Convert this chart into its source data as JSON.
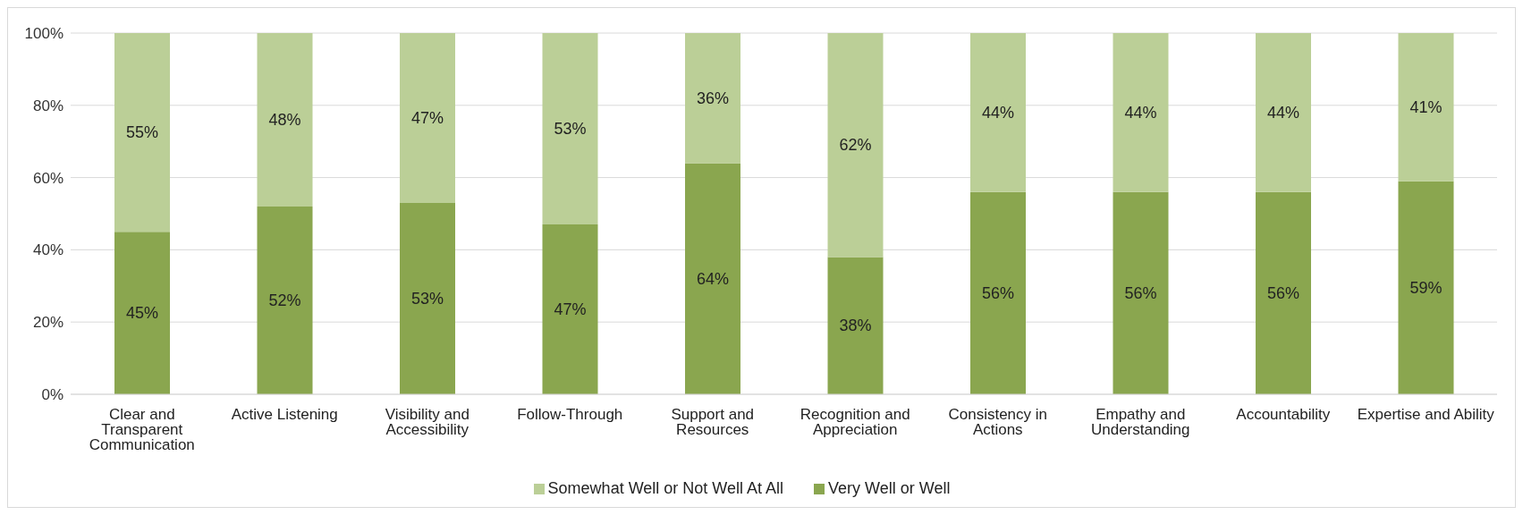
{
  "chart_data": {
    "type": "bar",
    "stacked": true,
    "categories": [
      "Clear and Transparent Communication",
      "Active Listening",
      "Visibility and Accessibility",
      "Follow-Through",
      "Support and Resources",
      "Recognition and Appreciation",
      "Consistency in Actions",
      "Empathy and Understanding",
      "Accountability",
      "Expertise and Ability"
    ],
    "series": [
      {
        "name": "Very Well or Well",
        "color": "#8aa64f",
        "values": [
          45,
          52,
          53,
          47,
          64,
          38,
          56,
          56,
          56,
          59
        ],
        "value_labels": [
          "45%",
          "52%",
          "53%",
          "47%",
          "64%",
          "38%",
          "56%",
          "56%",
          "56%",
          "59%"
        ]
      },
      {
        "name": "Somewhat Well or Not Well At All",
        "color": "#bbcf97",
        "values": [
          55,
          48,
          47,
          53,
          36,
          62,
          44,
          44,
          44,
          41
        ],
        "value_labels": [
          "55%",
          "48%",
          "47%",
          "53%",
          "36%",
          "62%",
          "44%",
          "44%",
          "44%",
          "41%"
        ]
      }
    ],
    "ylim": [
      0,
      100
    ],
    "yticks": [
      {
        "value": 0,
        "label": "0%"
      },
      {
        "value": 20,
        "label": "20%"
      },
      {
        "value": 40,
        "label": "40%"
      },
      {
        "value": 60,
        "label": "60%"
      },
      {
        "value": 80,
        "label": "80%"
      },
      {
        "value": 100,
        "label": "100%"
      }
    ],
    "grid": "y",
    "legend": "bottom"
  }
}
